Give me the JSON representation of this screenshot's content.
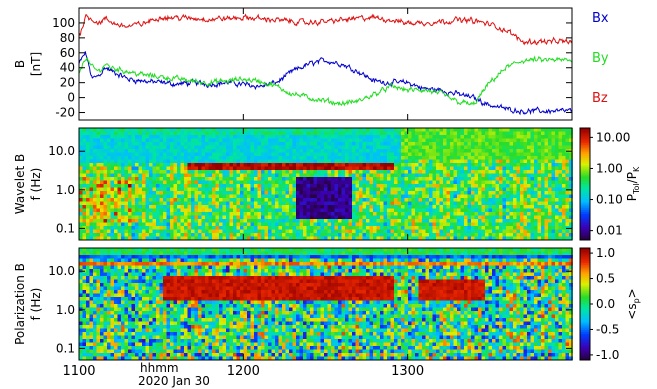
{
  "chart_data": [
    {
      "type": "line",
      "ylabel": "B",
      "yunit": "[nT]",
      "ylim": [
        -30,
        120
      ],
      "yticks": [
        "-20",
        "0",
        "20",
        "40",
        "60",
        "80",
        "100"
      ],
      "ytick_values": [
        -20,
        0,
        20,
        40,
        60,
        80,
        100
      ],
      "xlim": [
        1100,
        1400
      ],
      "grid": false,
      "legend": "right",
      "series": [
        {
          "name": "Bx",
          "color": "#0000cc",
          "x": [
            1100,
            1104,
            1108,
            1112,
            1116,
            1120,
            1130,
            1140,
            1150,
            1160,
            1170,
            1180,
            1190,
            1200,
            1210,
            1220,
            1230,
            1240,
            1250,
            1260,
            1270,
            1280,
            1290,
            1300,
            1310,
            1320,
            1330,
            1340,
            1350,
            1360,
            1370
          ],
          "y": [
            45,
            60,
            25,
            30,
            40,
            35,
            25,
            22,
            20,
            18,
            20,
            18,
            20,
            18,
            15,
            20,
            35,
            45,
            50,
            45,
            35,
            22,
            20,
            20,
            12,
            10,
            5,
            0,
            -10,
            -15,
            -18
          ]
        },
        {
          "name": "By",
          "color": "#22dd22",
          "x": [
            1100,
            1104,
            1108,
            1112,
            1116,
            1120,
            1130,
            1140,
            1150,
            1160,
            1170,
            1180,
            1190,
            1200,
            1210,
            1220,
            1230,
            1240,
            1250,
            1260,
            1270,
            1280,
            1290,
            1300,
            1310,
            1320,
            1330,
            1340,
            1350,
            1360,
            1370
          ],
          "y": [
            30,
            55,
            40,
            35,
            45,
            40,
            35,
            30,
            28,
            25,
            22,
            20,
            22,
            25,
            22,
            15,
            5,
            0,
            -5,
            -8,
            -5,
            5,
            15,
            10,
            10,
            5,
            -5,
            -10,
            20,
            40,
            50
          ]
        },
        {
          "name": "Bz",
          "color": "#dd1111",
          "x": [
            1100,
            1104,
            1108,
            1112,
            1116,
            1120,
            1130,
            1140,
            1150,
            1160,
            1170,
            1180,
            1190,
            1200,
            1210,
            1220,
            1230,
            1240,
            1250,
            1260,
            1270,
            1280,
            1290,
            1300,
            1310,
            1320,
            1330,
            1340,
            1350,
            1360,
            1370
          ],
          "y": [
            80,
            110,
            105,
            100,
            105,
            100,
            95,
            100,
            108,
            107,
            106,
            105,
            106,
            107,
            106,
            104,
            102,
            100,
            102,
            104,
            106,
            107,
            104,
            100,
            100,
            102,
            104,
            103,
            98,
            90,
            75
          ]
        }
      ]
    },
    {
      "type": "heatmap",
      "ylabel": "Wavelet B",
      "yunit": "f (Hz)",
      "yscale": "log",
      "ylim": [
        0.05,
        40
      ],
      "yticks": [
        "0.1",
        "1.0",
        "10.0"
      ],
      "ytick_values": [
        0.1,
        1.0,
        10.0
      ],
      "xlim": [
        1100,
        1400
      ],
      "colorbar": {
        "label_main": "P",
        "label_num_sub": "Tol",
        "label_sep": "/P",
        "label_den_sub": "K",
        "ticks": [
          "10.00",
          "1.00",
          "0.10",
          "0.01"
        ],
        "tick_values": [
          10,
          1,
          0.1,
          0.01
        ],
        "scale": "log",
        "range": [
          0.005,
          20
        ],
        "colormap": "rainbow"
      }
    },
    {
      "type": "heatmap",
      "ylabel": "Polarization B",
      "yunit": "f (Hz)",
      "yscale": "log",
      "ylim": [
        0.05,
        40
      ],
      "yticks": [
        "0.1",
        "1.0",
        "10.0"
      ],
      "ytick_values": [
        0.1,
        1.0,
        10.0
      ],
      "xlim": [
        1100,
        1400
      ],
      "colorbar": {
        "label": "<s",
        "label_sub": "p",
        "label_end": ">",
        "ticks": [
          "1.0",
          "0.5",
          "0.0",
          "-0.5",
          "-1.0"
        ],
        "tick_values": [
          1.0,
          0.5,
          0.0,
          -0.5,
          -1.0
        ],
        "range": [
          -1.1,
          1.1
        ],
        "colormap": "rainbow"
      }
    }
  ],
  "xaxis": {
    "ticks": [
      "1100",
      "1200",
      "1300"
    ],
    "tick_values": [
      1100,
      1200,
      1300
    ],
    "unit_label": "hhmm",
    "date_label": "2020 Jan 30"
  }
}
